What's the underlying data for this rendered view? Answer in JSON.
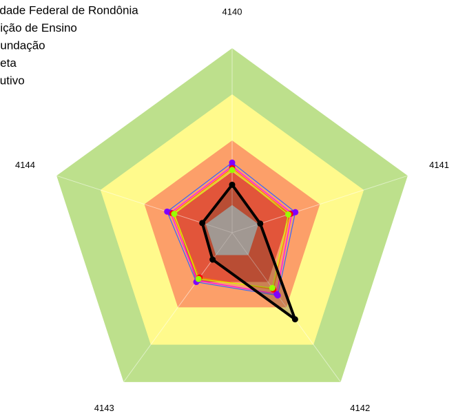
{
  "chart_data": {
    "type": "radar",
    "categories": [
      "4140",
      "4141",
      "4142",
      "4143",
      "4144"
    ],
    "rlim": [
      0,
      100
    ],
    "bands": [
      {
        "value": 100,
        "color": "#bde08c"
      },
      {
        "value": 75,
        "color": "#fffa8c"
      },
      {
        "value": 50,
        "color": "#fc9f69"
      },
      {
        "value": 33,
        "color": "#e2553a"
      },
      {
        "value": 15,
        "color": "#c0c0c0"
      }
    ],
    "series": [
      {
        "name": "Universidade Federal de Rondônia",
        "color": "#3366ff",
        "marker": "#8000ff",
        "values": [
          38,
          36,
          42,
          33,
          37
        ]
      },
      {
        "name": "Instituição de Ensino",
        "color": "#ff00ff",
        "marker": "#8000ff",
        "values": [
          36,
          34,
          41,
          32,
          35
        ]
      },
      {
        "name": "Fundação",
        "color": "#ff8000",
        "marker": "#ff0000",
        "values": [
          35,
          33,
          38,
          30,
          34
        ]
      },
      {
        "name": "Meta",
        "color": "#ccff00",
        "marker": "#99ff00",
        "values": [
          34,
          32,
          37,
          31,
          33
        ]
      },
      {
        "name": "Executivo",
        "color": "#000000",
        "marker": "#000000",
        "values": [
          26,
          16,
          58,
          18,
          17
        ]
      }
    ]
  }
}
